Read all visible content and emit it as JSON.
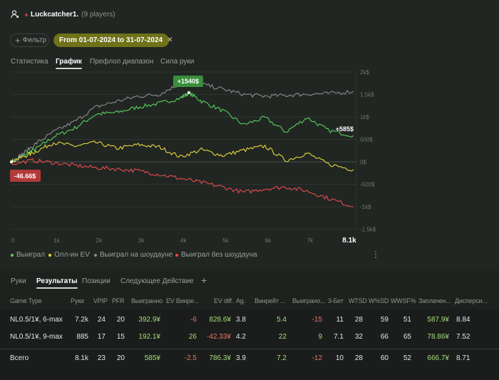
{
  "header": {
    "player": "Luckcatcher1.",
    "players_count": "(9 players)",
    "status_color": "#c0392b"
  },
  "filters": {
    "add_filter": "Фильтр",
    "date_range": "From 01-07-2024 to 31-07-2024"
  },
  "main_tabs": [
    {
      "label": "Статистика"
    },
    {
      "label": "График",
      "active": true
    },
    {
      "label": "Префлоп диапазон"
    },
    {
      "label": "Сила руки"
    }
  ],
  "chart_data": {
    "type": "line",
    "xlim": [
      0,
      8100
    ],
    "ylim": [
      -1500,
      2000
    ],
    "x_ticks": [
      "0",
      "1k",
      "2k",
      "3k",
      "4k",
      "5k",
      "6k",
      "7k",
      "8.1k"
    ],
    "y_ticks": [
      "2k$",
      "1.5k$",
      "1k$",
      "500$",
      "0$",
      "-500$",
      "-1k$",
      "-1.5k$"
    ],
    "peak_label": "+1540$",
    "end_label": "+585$",
    "start_label": "-46.66$",
    "series": [
      {
        "name": "Выиграл",
        "color": "#59d15a",
        "x": [
          0,
          300,
          600,
          1000,
          1500,
          2000,
          2500,
          3000,
          3500,
          4000,
          4200,
          4500,
          5000,
          5500,
          6000,
          6500,
          7000,
          7500,
          8100
        ],
        "y": [
          0,
          150,
          300,
          560,
          750,
          1060,
          1100,
          1220,
          1300,
          1420,
          1540,
          1350,
          1140,
          825,
          985,
          667,
          985,
          700,
          585
        ]
      },
      {
        "name": "Олл-ин EV",
        "color": "#e6d73a",
        "x": [
          0,
          300,
          600,
          1000,
          1500,
          2000,
          2500,
          3000,
          3500,
          4000,
          4500,
          5000,
          5500,
          6000,
          6500,
          7000,
          7500,
          8100
        ],
        "y": [
          0,
          120,
          240,
          430,
          350,
          430,
          300,
          380,
          330,
          110,
          270,
          140,
          260,
          350,
          30,
          190,
          -50,
          -175
        ]
      },
      {
        "name": "Выиграл на шоудауне",
        "color": "#8c8c8c",
        "x": [
          0,
          300,
          600,
          1000,
          1500,
          2000,
          2500,
          3000,
          3500,
          3900,
          4500,
          5000,
          5500,
          6000,
          6500,
          7000,
          7500,
          8100
        ],
        "y": [
          0,
          200,
          420,
          667,
          900,
          1220,
          1350,
          1460,
          1500,
          1700,
          1730,
          1620,
          1500,
          1460,
          1480,
          1510,
          1520,
          1570
        ]
      },
      {
        "name": "Выиграл без шоудауна",
        "color": "#e84b4b",
        "x": [
          0,
          500,
          1000,
          1500,
          2000,
          2500,
          3000,
          3500,
          4000,
          4500,
          5000,
          5500,
          6000,
          6500,
          7000,
          7500,
          8100
        ],
        "y": [
          -47,
          30,
          -20,
          -80,
          -130,
          -160,
          -200,
          -280,
          -370,
          -460,
          -560,
          -680,
          -600,
          -560,
          -650,
          -810,
          -1000
        ]
      }
    ]
  },
  "bottom_tabs": [
    {
      "label": "Руки"
    },
    {
      "label": "Результаты",
      "active": true
    },
    {
      "label": "Позиции"
    },
    {
      "label": "Следующее Действие"
    }
  ],
  "add_tab": "+",
  "table": {
    "columns": [
      "Game Type",
      "Руки",
      "VPIP",
      "PFR",
      "Выигранно",
      "EV Винре...",
      "EV diff.",
      "Ag.",
      "Винрейт ...",
      "Выиграно...",
      "3-Бет",
      "WTSD",
      "W%SD",
      "WWSF%",
      "Заплачен...",
      "Дисперси..."
    ],
    "rows": [
      [
        "NL0.5/1¥, 6-max",
        "7.2k",
        "24",
        "20",
        "392.9¥",
        "-6",
        "828.6¥",
        "3.8",
        "5.4",
        "-15",
        "11",
        "28",
        "59",
        "51",
        "587.9¥",
        "8.84"
      ],
      [
        "NL0.5/1¥, 9-max",
        "885",
        "17",
        "15",
        "192.1¥",
        "26",
        "-42.33¥",
        "4.2",
        "22",
        "9",
        "7.1",
        "32",
        "66",
        "65",
        "78.86¥",
        "7.52"
      ]
    ],
    "total": [
      "Всего",
      "8.1k",
      "23",
      "20",
      "585¥",
      "-2.5",
      "786.3¥",
      "3.9",
      "7.2",
      "-12",
      "10",
      "28",
      "60",
      "52",
      "666.7¥",
      "8.71"
    ]
  }
}
